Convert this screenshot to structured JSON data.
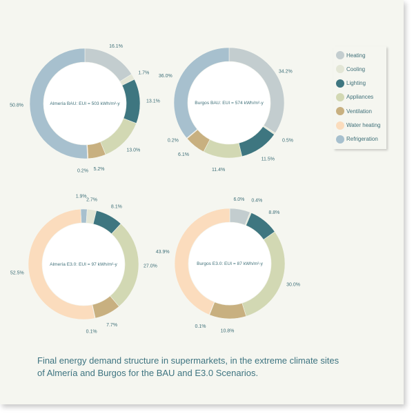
{
  "categories": [
    {
      "key": "heating",
      "label": "Heating",
      "color": "#c3cdcf"
    },
    {
      "key": "cooling",
      "label": "Cooling",
      "color": "#e3e6d6"
    },
    {
      "key": "lighting",
      "label": "Lighting",
      "color": "#3e7680"
    },
    {
      "key": "appliances",
      "label": "Appliances",
      "color": "#d2d8b3"
    },
    {
      "key": "ventilation",
      "label": "Ventilation",
      "color": "#c8b080"
    },
    {
      "key": "water_heating",
      "label": "Water heating",
      "color": "#fbdcbd"
    },
    {
      "key": "refrigeration",
      "label": "Refrigeration",
      "color": "#a7c0ce"
    }
  ],
  "legend": {
    "items": [
      "Heating",
      "Cooling",
      "Lighting",
      "Appliances",
      "Ventilation",
      "Water heating",
      "Refrigeration"
    ]
  },
  "chart_data": [
    {
      "type": "pie",
      "variant": "donut",
      "title": "Almería BAU: EUI = 503 kWh/m²-y",
      "labels": [
        "Heating",
        "Cooling",
        "Lighting",
        "Appliances",
        "Ventilation",
        "Water heating",
        "Refrigeration"
      ],
      "values": [
        16.1,
        1.7,
        13.1,
        13.0,
        5.2,
        0.2,
        50.8
      ],
      "value_labels": [
        "16.1%",
        "1.7%",
        "13.1%",
        "13.0%",
        "5.2%",
        "0.2%",
        "50.8%"
      ],
      "start_angle_deg": 0,
      "direction": "clockwise"
    },
    {
      "type": "pie",
      "variant": "donut",
      "title": "Burgos BAU: EUI = 574 kWh/m²-y",
      "labels": [
        "Heating",
        "Cooling",
        "Lighting",
        "Appliances",
        "Ventilation",
        "Water heating",
        "Refrigeration"
      ],
      "values": [
        34.2,
        0.5,
        11.5,
        11.4,
        6.1,
        0.2,
        36.0
      ],
      "value_labels": [
        "34.2%",
        "0.5%",
        "11.5%",
        "11.4%",
        "6.1%",
        "0.2%",
        "36.0%"
      ],
      "start_angle_deg": 0,
      "direction": "clockwise"
    },
    {
      "type": "pie",
      "variant": "donut",
      "title": "Almería E3.0: EUI = 97 kWh/m²-y",
      "labels": [
        "Heating",
        "Cooling",
        "Lighting",
        "Appliances",
        "Ventilation",
        "Refrigeration",
        "Water heating"
      ],
      "values": [
        1.9,
        2.7,
        8.1,
        27.0,
        7.7,
        0.1,
        52.5
      ],
      "value_labels": [
        "1.9%",
        "2.7%",
        "8.1%",
        "27.0%",
        "7.7%",
        "0.1%",
        "52.5%"
      ],
      "slice_colors": [
        "#a7c0ce",
        "#e3e6d6",
        "#3e7680",
        "#d2d8b3",
        "#c8b080",
        "#e6b6c4",
        "#fbdcbd"
      ],
      "start_angle_deg": -3,
      "direction": "clockwise"
    },
    {
      "type": "pie",
      "variant": "donut",
      "title": "Burgos E3.0: EUI = 87 kWh/m²-y",
      "labels": [
        "Heating",
        "Cooling",
        "Lighting",
        "Appliances",
        "Ventilation",
        "Refrigeration",
        "Water heating"
      ],
      "values": [
        6.0,
        0.4,
        8.8,
        30.0,
        10.8,
        0.1,
        43.9
      ],
      "value_labels": [
        "6.0%",
        "0.4%",
        "8.8%",
        "30.0%",
        "10.8%",
        "0.1%",
        "43.9%"
      ],
      "slice_colors": [
        "#c3cdcf",
        "#e3e6d6",
        "#3e7680",
        "#d2d8b3",
        "#c8b080",
        "#e6b6c4",
        "#fbdcbd"
      ],
      "start_angle_deg": 0,
      "direction": "clockwise"
    }
  ],
  "caption": {
    "line1": "Final energy demand structure in supermarkets, in the extreme climate sites",
    "line2": "of Almería and Burgos for the BAU and E3.0 Scenarios."
  },
  "colors": {
    "text": "#3e6f78",
    "page_background": "#f5f6f0"
  }
}
